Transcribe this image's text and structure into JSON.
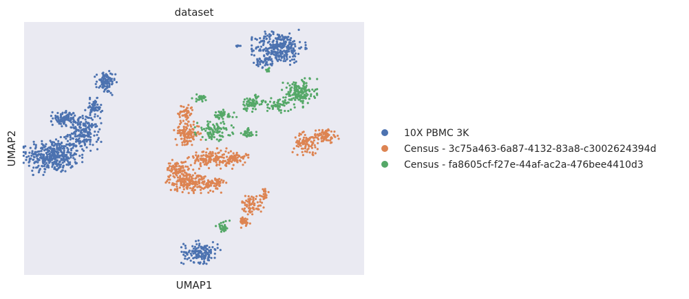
{
  "chart_data": {
    "type": "scatter",
    "title": "dataset",
    "xlabel": "UMAP1",
    "ylabel": "UMAP2",
    "xlim": [
      0,
      100
    ],
    "ylim": [
      0,
      100
    ],
    "grid": false,
    "legend_position": "right",
    "background_color": "#eaeaf2",
    "series": [
      {
        "name": "10X PBMC 3K",
        "color": "#4c72b0",
        "clusters": [
          {
            "cx": 8.5,
            "cy": 47,
            "rx": 7.5,
            "ry": 6.5,
            "n": 380
          },
          {
            "cx": 17.5,
            "cy": 56,
            "rx": 4.5,
            "ry": 6,
            "n": 180
          },
          {
            "cx": 12,
            "cy": 62,
            "rx": 3.5,
            "ry": 2.8,
            "n": 90
          },
          {
            "cx": 24,
            "cy": 76,
            "rx": 2.8,
            "ry": 4.2,
            "n": 90
          },
          {
            "cx": 20.5,
            "cy": 66,
            "rx": 2.2,
            "ry": 3.5,
            "n": 60
          },
          {
            "cx": 75,
            "cy": 90,
            "rx": 7,
            "ry": 6,
            "n": 290
          },
          {
            "cx": 71,
            "cy": 84,
            "rx": 3,
            "ry": 2,
            "n": 40
          },
          {
            "cx": 63,
            "cy": 90.5,
            "rx": 0.8,
            "ry": 0.4,
            "n": 5
          },
          {
            "cx": 52,
            "cy": 9,
            "rx": 5,
            "ry": 4,
            "n": 150
          }
        ]
      },
      {
        "name": "Census - 3c75a463-6a87-4132-83a8-c3002624394d",
        "color": "#dd8452",
        "clusters": [
          {
            "cx": 48,
            "cy": 56,
            "rx": 3.5,
            "ry": 4,
            "n": 120
          },
          {
            "cx": 47.5,
            "cy": 64,
            "rx": 2.2,
            "ry": 3.5,
            "n": 50
          },
          {
            "cx": 55,
            "cy": 46,
            "rx": 6,
            "ry": 3.5,
            "n": 140
          },
          {
            "cx": 45,
            "cy": 42,
            "rx": 3,
            "ry": 3,
            "n": 70
          },
          {
            "cx": 48,
            "cy": 37,
            "rx": 5.5,
            "ry": 4,
            "n": 180
          },
          {
            "cx": 56,
            "cy": 36,
            "rx": 3,
            "ry": 3,
            "n": 70
          },
          {
            "cx": 62.5,
            "cy": 46,
            "rx": 3,
            "ry": 2.5,
            "n": 60
          },
          {
            "cx": 67,
            "cy": 28,
            "rx": 3,
            "ry": 3.5,
            "n": 70
          },
          {
            "cx": 64.5,
            "cy": 21,
            "rx": 2,
            "ry": 2,
            "n": 35
          },
          {
            "cx": 70.5,
            "cy": 32,
            "rx": 1.2,
            "ry": 2.5,
            "n": 20
          },
          {
            "cx": 83,
            "cy": 52,
            "rx": 3.5,
            "ry": 4,
            "n": 80
          },
          {
            "cx": 88.5,
            "cy": 55,
            "rx": 3.5,
            "ry": 2.8,
            "n": 80
          }
        ]
      },
      {
        "name": "Census - fa8605cf-f27e-44af-ac2a-476bee4410d3",
        "color": "#55a868",
        "clusters": [
          {
            "cx": 81,
            "cy": 72,
            "rx": 4.5,
            "ry": 5,
            "n": 160
          },
          {
            "cx": 75,
            "cy": 67,
            "rx": 3,
            "ry": 2.5,
            "n": 50
          },
          {
            "cx": 67,
            "cy": 68,
            "rx": 3.5,
            "ry": 3,
            "n": 70
          },
          {
            "cx": 56,
            "cy": 57,
            "rx": 5,
            "ry": 3.5,
            "n": 90
          },
          {
            "cx": 52,
            "cy": 70,
            "rx": 2.5,
            "ry": 1.5,
            "n": 25
          },
          {
            "cx": 58,
            "cy": 63,
            "rx": 4,
            "ry": 2,
            "n": 40
          },
          {
            "cx": 66,
            "cy": 56,
            "rx": 2,
            "ry": 2,
            "n": 30
          },
          {
            "cx": 58.5,
            "cy": 19,
            "rx": 2,
            "ry": 2.2,
            "n": 30
          },
          {
            "cx": 72,
            "cy": 81,
            "rx": 1,
            "ry": 0.7,
            "n": 8
          }
        ]
      }
    ]
  }
}
